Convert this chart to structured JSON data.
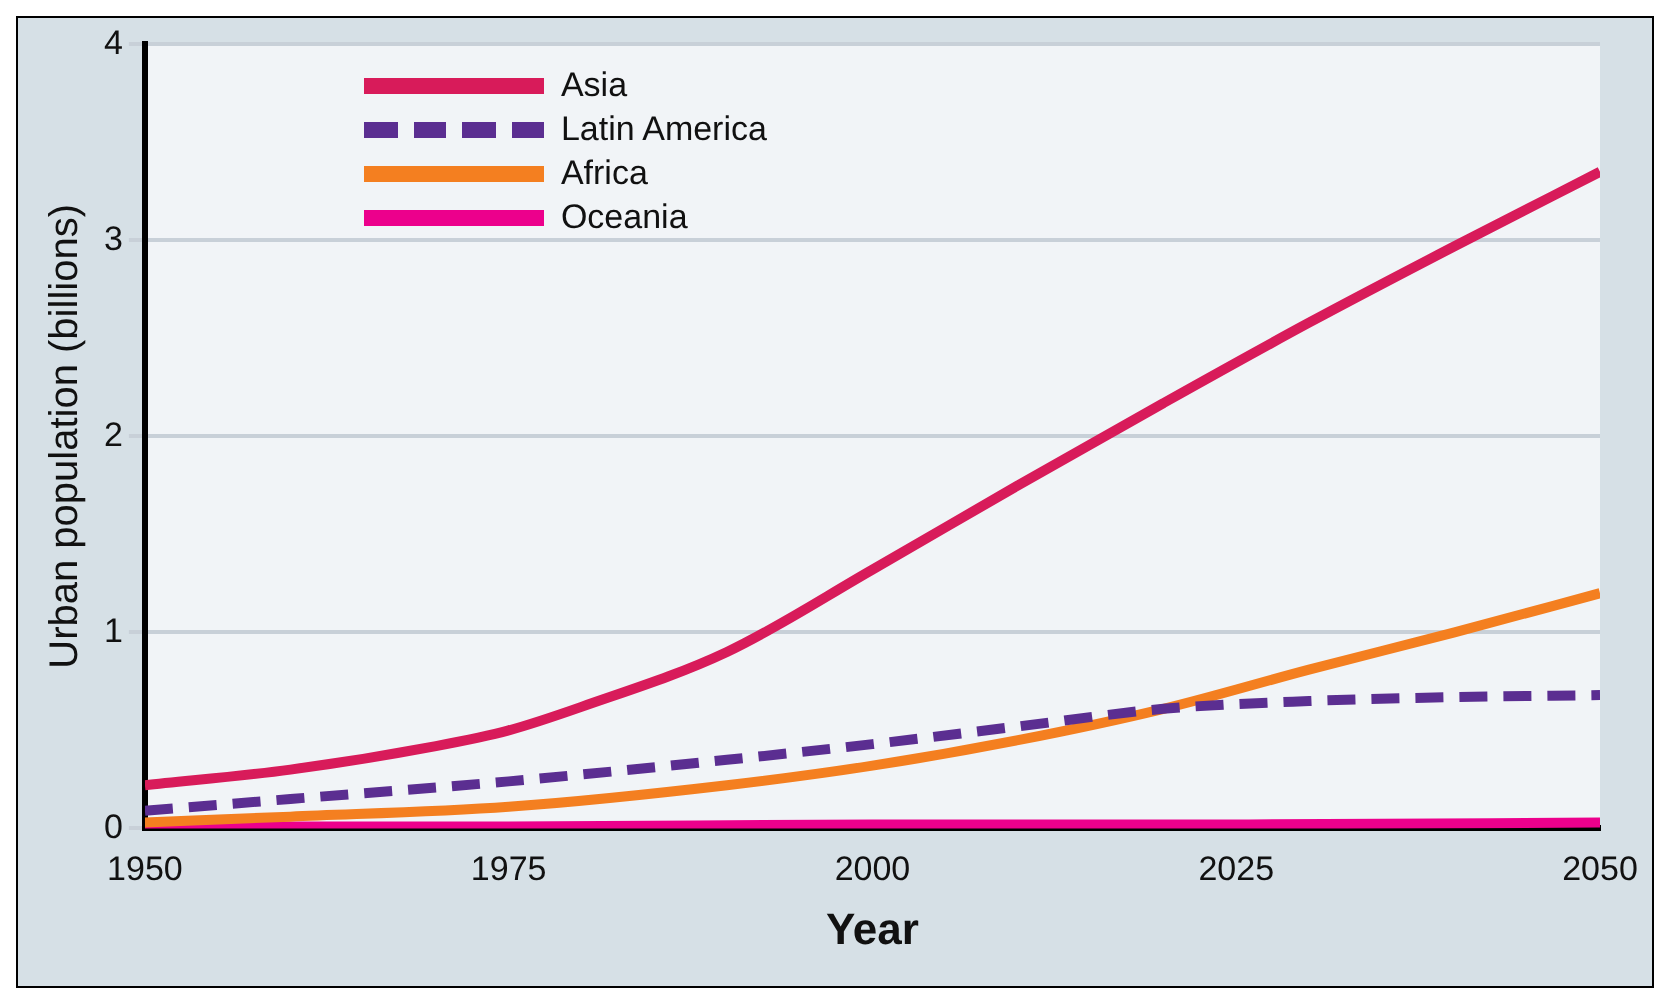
{
  "chart_data": {
    "type": "line",
    "xlabel": "Year",
    "ylabel": "Urban population (billions)",
    "xlim": [
      1950,
      2050
    ],
    "xticks": [
      1950,
      1975,
      2000,
      2025,
      2050
    ],
    "ylim": [
      0,
      4
    ],
    "yticks": [
      0,
      1,
      2,
      3,
      4
    ],
    "grid": "y",
    "legend": "top left",
    "marker": "none",
    "series": [
      {
        "name": "Asia",
        "color": "#d81b5a",
        "line_style": "solid",
        "x": [
          1950,
          1960,
          1970,
          1975,
          1980,
          1990,
          2000,
          2010,
          2020,
          2030,
          2040,
          2050
        ],
        "values": [
          0.22,
          0.3,
          0.42,
          0.5,
          0.62,
          0.9,
          1.32,
          1.75,
          2.17,
          2.58,
          2.97,
          3.35
        ]
      },
      {
        "name": "Latin America",
        "color": "#5b2e91",
        "line_style": "dashed",
        "x": [
          1950,
          1960,
          1975,
          1990,
          2000,
          2010,
          2020,
          2030,
          2040,
          2050
        ],
        "values": [
          0.09,
          0.15,
          0.24,
          0.35,
          0.43,
          0.52,
          0.61,
          0.65,
          0.67,
          0.68
        ]
      },
      {
        "name": "Africa",
        "color": "#f47f20",
        "line_style": "solid",
        "x": [
          1950,
          1960,
          1975,
          1990,
          2000,
          2010,
          2020,
          2030,
          2040,
          2050
        ],
        "values": [
          0.03,
          0.06,
          0.11,
          0.22,
          0.32,
          0.45,
          0.61,
          0.81,
          1.0,
          1.2
        ]
      },
      {
        "name": "Oceania",
        "color": "#ec008c",
        "line_style": "solid",
        "x": [
          1950,
          1975,
          2000,
          2025,
          2050
        ],
        "values": [
          0.01,
          0.01,
          0.02,
          0.02,
          0.03
        ]
      }
    ]
  }
}
